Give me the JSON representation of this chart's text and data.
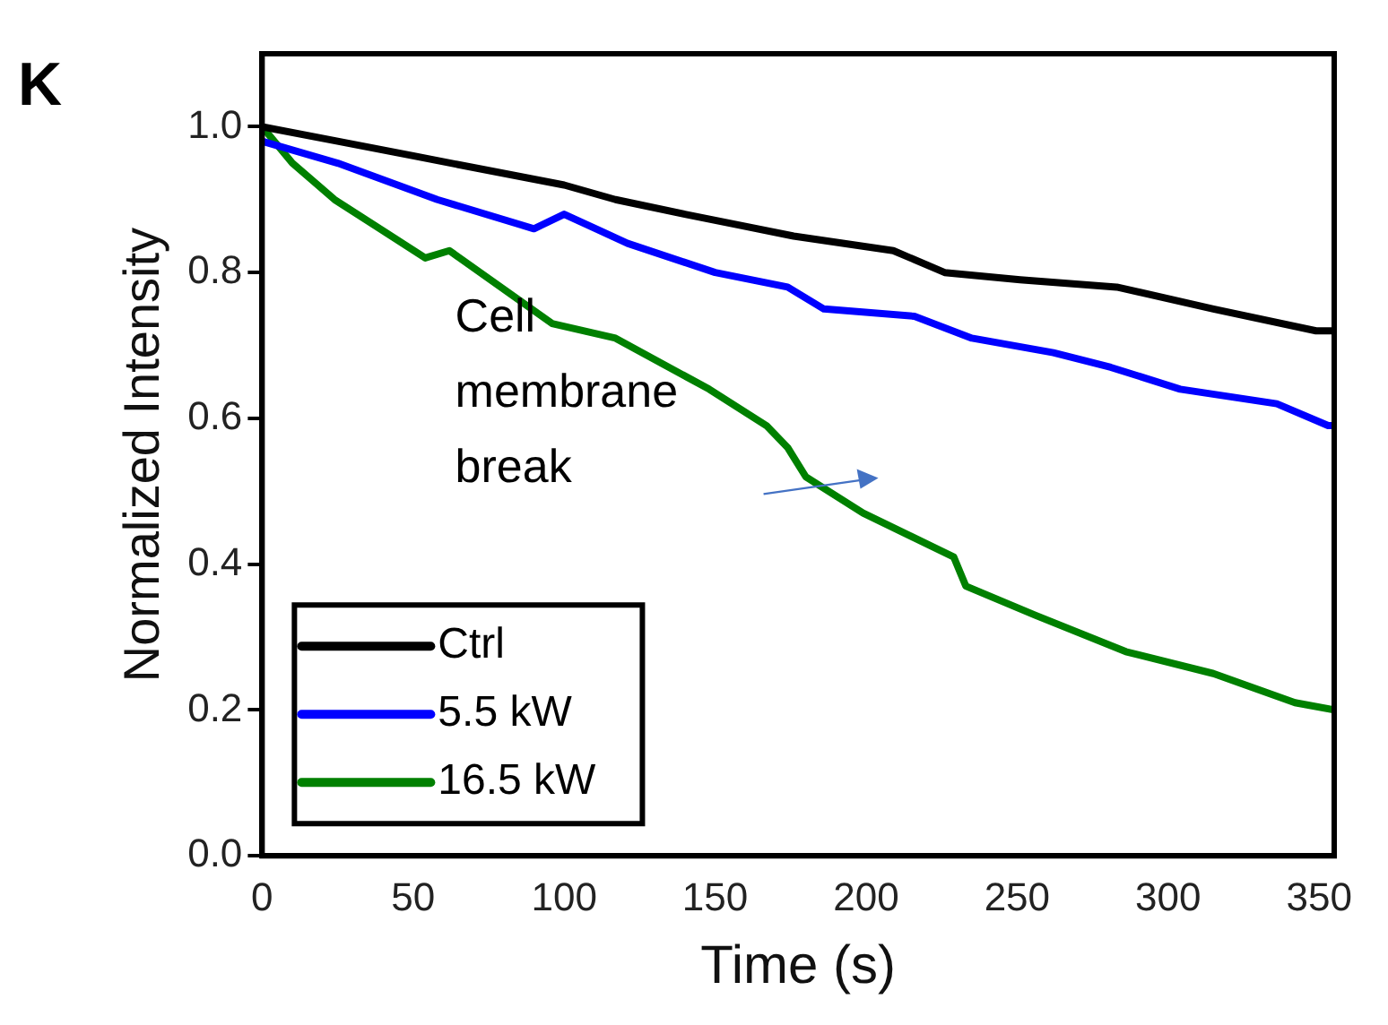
{
  "chart_data": {
    "type": "line",
    "title": "K",
    "xlabel": "Time (s)",
    "ylabel": "Normalized Intensity",
    "xlim": [
      0,
      355
    ],
    "ylim": [
      0,
      1.1
    ],
    "xticks": [
      0,
      50,
      100,
      150,
      200,
      250,
      300,
      350
    ],
    "yticks": [
      {
        "value": 0,
        "label": "0.0"
      },
      0.2,
      0.4,
      0.6,
      0.8,
      {
        "value": 1,
        "label": "1.0"
      }
    ],
    "grid": false,
    "legend": "bottom left",
    "marker": "none",
    "line_style": "solid",
    "annotations": [
      "Cell\nmembrane\nbreak"
    ],
    "series": [
      {
        "name": "Ctrl",
        "color": "#000000",
        "x": [
          0,
          25,
          50,
          75,
          100,
          117,
          140,
          176,
          209,
          226,
          251,
          283,
          315,
          349,
          355
        ],
        "values": [
          1.0,
          0.98,
          0.96,
          0.94,
          0.92,
          0.9,
          0.88,
          0.85,
          0.83,
          0.8,
          0.79,
          0.78,
          0.75,
          0.72,
          0.72
        ]
      },
      {
        "name": "5.5 kW",
        "color": "#0000ff",
        "x": [
          0,
          25,
          58,
          90,
          100,
          121,
          150,
          174,
          186,
          216,
          235,
          262,
          281,
          304,
          336,
          353,
          355
        ],
        "values": [
          0.98,
          0.95,
          0.9,
          0.86,
          0.88,
          0.84,
          0.8,
          0.78,
          0.75,
          0.74,
          0.71,
          0.69,
          0.67,
          0.64,
          0.62,
          0.59,
          0.59
        ]
      },
      {
        "name": "16.5 kW",
        "color": "#008000",
        "x": [
          0,
          10,
          24,
          54,
          62,
          96,
          117,
          148,
          167,
          174,
          180,
          199,
          229,
          233,
          256,
          286,
          315,
          342,
          355
        ],
        "values": [
          1.0,
          0.95,
          0.9,
          0.82,
          0.83,
          0.73,
          0.71,
          0.64,
          0.59,
          0.56,
          0.52,
          0.47,
          0.41,
          0.37,
          0.33,
          0.28,
          0.25,
          0.21,
          0.2
        ]
      }
    ]
  }
}
